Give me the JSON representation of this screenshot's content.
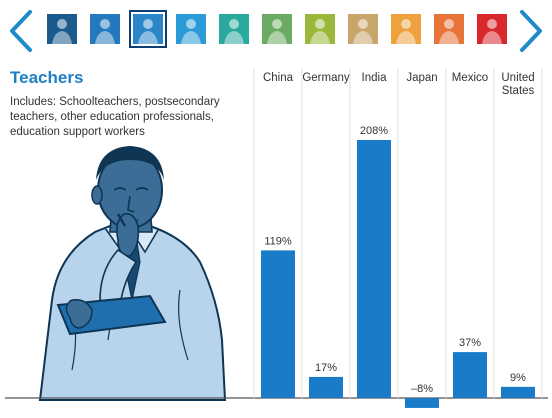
{
  "navigation": {
    "prev_icon": "chevron-left-icon",
    "next_icon": "chevron-right-icon",
    "thumbnails": [
      {
        "color": "#1a5a8c",
        "icon": "occupation-thumbnail-icon"
      },
      {
        "color": "#2478bd",
        "icon": "occupation-thumbnail-icon"
      },
      {
        "color": "#2a86c8",
        "icon": "occupation-thumbnail-icon",
        "selected": true
      },
      {
        "color": "#2a9bd6",
        "icon": "occupation-thumbnail-icon"
      },
      {
        "color": "#2aaa9e",
        "icon": "occupation-thumbnail-icon"
      },
      {
        "color": "#6aaa62",
        "icon": "occupation-thumbnail-icon"
      },
      {
        "color": "#9cb83a",
        "icon": "occupation-thumbnail-icon"
      },
      {
        "color": "#c8a56a",
        "icon": "occupation-thumbnail-icon"
      },
      {
        "color": "#eea13c",
        "icon": "occupation-thumbnail-icon"
      },
      {
        "color": "#e8743a",
        "icon": "occupation-thumbnail-icon"
      },
      {
        "color": "#d8282c",
        "icon": "occupation-thumbnail-icon"
      }
    ]
  },
  "colors": {
    "accent": "#1e7fc4",
    "bar": "#1a7cc9",
    "nav": "#1f8ac9"
  },
  "panel": {
    "title": "Teachers",
    "description": "Includes: Schoolteachers, postsecondary teachers, other education professionals, education support workers",
    "illustration": "teacher-illustration"
  },
  "chart_data": {
    "type": "bar",
    "title": "Teachers",
    "categories": [
      "China",
      "Germany",
      "India",
      "Japan",
      "Mexico",
      "United States"
    ],
    "values": [
      119,
      17,
      208,
      -8,
      37,
      9
    ],
    "value_labels": [
      "119%",
      "17%",
      "208%",
      "–8%",
      "37%",
      "9%"
    ],
    "unit": "%",
    "ylim": [
      -10,
      240
    ],
    "grid": false,
    "legend": "none"
  }
}
